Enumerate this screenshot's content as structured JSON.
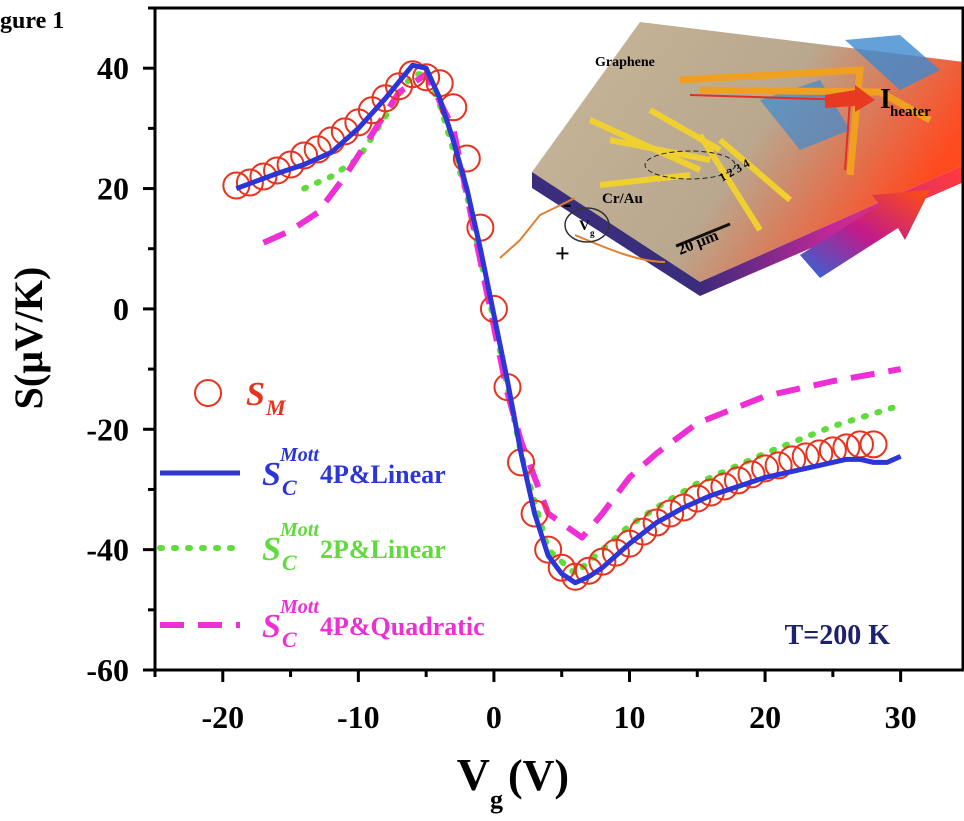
{
  "chart_data": {
    "type": "line",
    "figure_label": "gure 1",
    "xlabel": "V",
    "xlabel_sub": "g",
    "xlabel_unit": "(V)",
    "ylabel": "S(μV/K)",
    "annotation": "T=200 K",
    "xlim": [
      -25,
      34.6
    ],
    "ylim": [
      -60,
      50
    ],
    "xticks": [
      -20,
      -10,
      0,
      10,
      20,
      30
    ],
    "xminorticks": [
      -25,
      -15,
      -5,
      5,
      15,
      25
    ],
    "yticks": [
      -60,
      -40,
      -20,
      0,
      20,
      40
    ],
    "yminorticks": [
      -50,
      -30,
      -10,
      10,
      30,
      50
    ],
    "series": [
      {
        "symbol": "S",
        "sub": "M",
        "color": "#e8321e",
        "style": "circle",
        "x": [
          -19,
          -18,
          -17,
          -16,
          -15,
          -14,
          -13,
          -12,
          -11,
          -10,
          -9,
          -8,
          -7,
          -6,
          -5,
          -4,
          -3,
          -2,
          -1,
          0,
          1,
          2,
          3,
          4,
          5,
          6,
          7,
          8,
          9,
          10,
          11,
          12,
          13,
          14,
          15,
          16,
          17,
          18,
          19,
          20,
          21,
          22,
          23,
          24,
          25,
          26,
          27,
          28
        ],
        "values": [
          20.5,
          21,
          22,
          23,
          24,
          25.5,
          26.5,
          28,
          29.5,
          31,
          33,
          35,
          37,
          39,
          38.5,
          37.5,
          33.5,
          25,
          13.5,
          0,
          -13,
          -25.5,
          -34,
          -40,
          -43,
          -44.5,
          -43.5,
          -42,
          -40.5,
          -39,
          -37,
          -35.5,
          -34,
          -33,
          -31.5,
          -30.5,
          -29.5,
          -28.5,
          -27.5,
          -26.5,
          -26,
          -25,
          -24.5,
          -24,
          -23.5,
          -23,
          -22.5,
          -22.5
        ]
      },
      {
        "symbol": "S",
        "sub": "C",
        "sup": "Mott",
        "name": "4P&Linear",
        "color": "#2b35d8",
        "style": "solid",
        "x": [
          -19,
          -16,
          -14,
          -12,
          -10,
          -8,
          -6,
          -5,
          -4,
          -3,
          -2,
          -1,
          0,
          1,
          2,
          3,
          4,
          5,
          6,
          7,
          8,
          10,
          12,
          14,
          16,
          18,
          20,
          22,
          24,
          26,
          27,
          28,
          29,
          30
        ],
        "values": [
          20,
          22.5,
          24,
          26,
          30,
          35,
          40.5,
          40,
          35,
          28,
          20,
          10,
          -1,
          -12,
          -24,
          -34,
          -41,
          -44,
          -45.5,
          -44.5,
          -43,
          -39,
          -35.5,
          -33,
          -31,
          -29.5,
          -28,
          -27,
          -26,
          -25,
          -25,
          -25.5,
          -25.5,
          -24.5
        ]
      },
      {
        "symbol": "S",
        "sub": "C",
        "sup": "Mott",
        "name": "2P&Linear",
        "color": "#5fdc3c",
        "style": "dotted",
        "x": [
          -14,
          -12,
          -10,
          -8,
          -6,
          -5,
          -4,
          -2,
          0,
          2,
          4,
          6,
          8,
          10,
          12,
          15,
          20,
          25,
          30
        ],
        "values": [
          20,
          22,
          25,
          32,
          39,
          39,
          34,
          19,
          -2,
          -24,
          -40,
          -44,
          -40,
          -36,
          -33,
          -29,
          -24,
          -19.5,
          -16
        ]
      },
      {
        "symbol": "S",
        "sub": "C",
        "sup": "Mott",
        "name": "4P&Quadratic",
        "color": "#ee2fd6",
        "style": "dashed",
        "x": [
          -17,
          -15,
          -13,
          -11,
          -9,
          -7,
          -5,
          -3,
          -1,
          1,
          2,
          4,
          6.5,
          8,
          10,
          12,
          15,
          20,
          25,
          30
        ],
        "values": [
          11,
          13,
          16,
          22,
          29,
          36,
          39,
          30,
          8,
          -14,
          -22,
          -34,
          -38,
          -34,
          -28,
          -24,
          -19,
          -14.5,
          -12,
          -10
        ]
      }
    ],
    "inset_labels": {
      "graphene": "Graphene",
      "current": "I",
      "current_sub": "heater",
      "contacts": "Cr/Au",
      "scale": "20 μm",
      "gate": "V",
      "gate_sub": "g",
      "minus": "-",
      "plus": "+",
      "electrodes": "1 2 3 4"
    }
  }
}
